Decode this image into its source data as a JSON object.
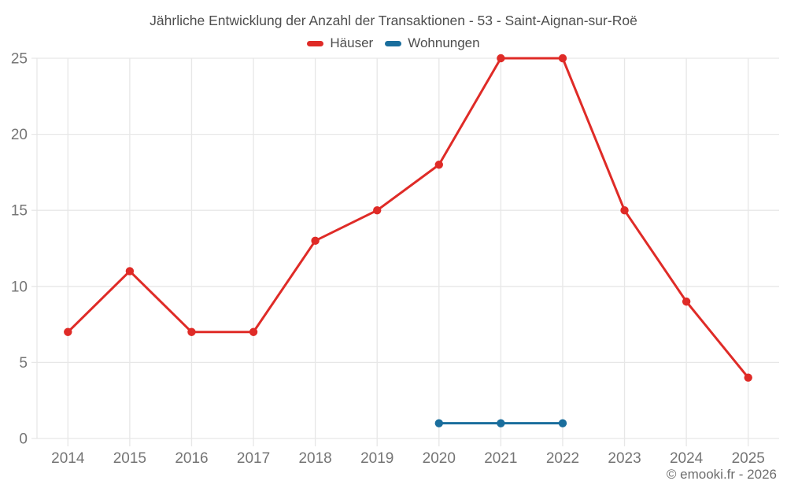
{
  "copyright": "© emooki.fr - 2026",
  "colors": {
    "grid": "#e7e7e7",
    "axis_text": "#757575",
    "title_text": "#4e4e4e",
    "copyright_text": "#6d6d6d",
    "hauser": "#df2b27",
    "wohnungen": "#1a6e9d"
  },
  "chart_data": {
    "type": "line",
    "title": "Jährliche Entwicklung der Anzahl der Transaktionen - 53 - Saint-Aignan-sur-Roë",
    "categories": [
      "2014",
      "2015",
      "2016",
      "2017",
      "2018",
      "2019",
      "2020",
      "2021",
      "2022",
      "2023",
      "2024",
      "2025"
    ],
    "series": [
      {
        "key": "hauser",
        "name": "Häuser",
        "color": "#df2b27",
        "values": [
          7,
          11,
          7,
          7,
          13,
          15,
          18,
          25,
          25,
          15,
          9,
          4
        ]
      },
      {
        "key": "wohnungen",
        "name": "Wohnungen",
        "color": "#1a6e9d",
        "values": [
          null,
          null,
          null,
          null,
          null,
          null,
          1,
          1,
          1,
          null,
          null,
          null
        ]
      }
    ],
    "xlabel": "",
    "ylabel": "",
    "ylim": [
      0,
      25
    ],
    "yticks": [
      0,
      5,
      10,
      15,
      20,
      25
    ],
    "grid": true,
    "legend_position": "top"
  }
}
